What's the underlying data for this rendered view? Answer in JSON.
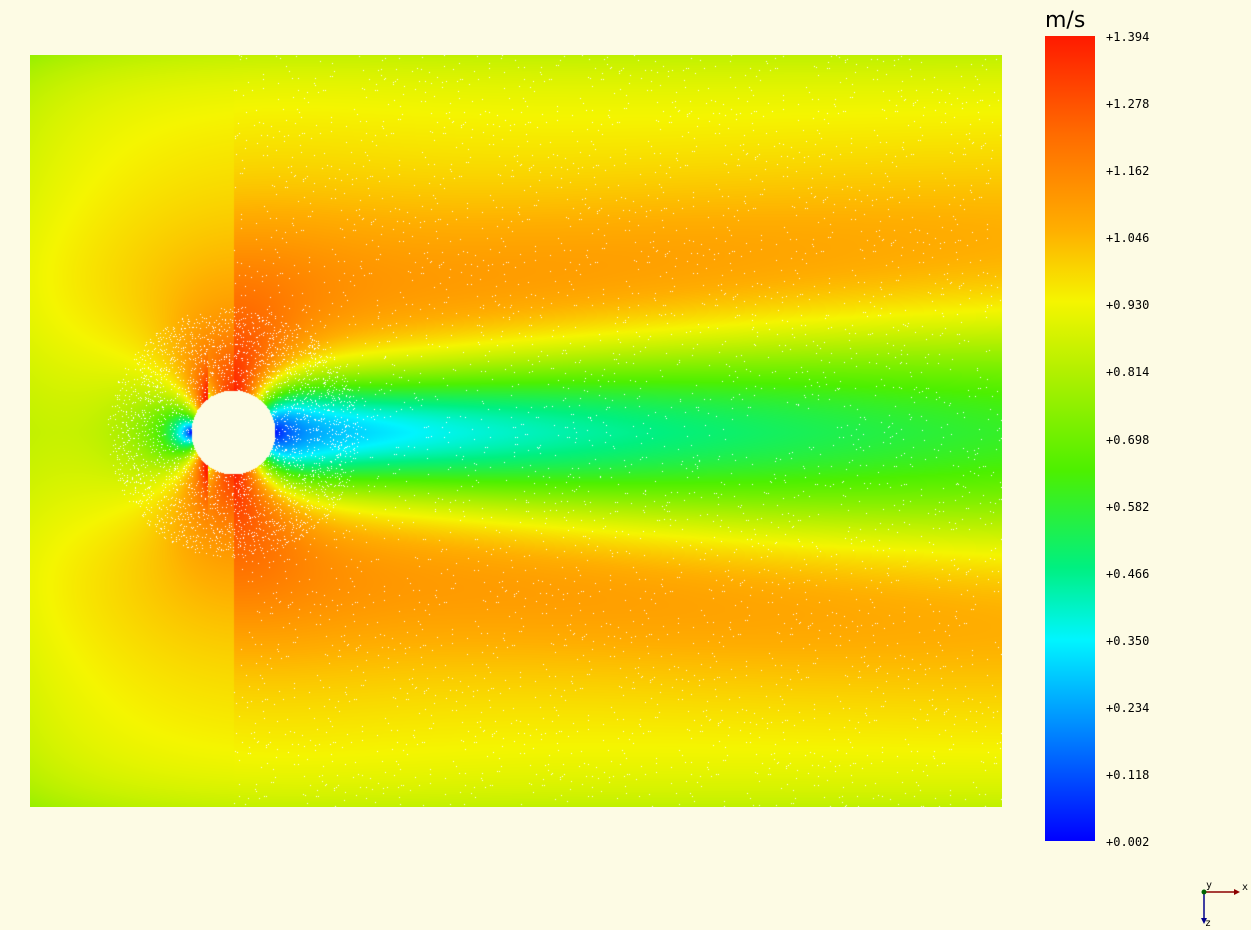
{
  "legend": {
    "unit": "m/s",
    "ticks": [
      "+1.394",
      "+1.278",
      "+1.162",
      "+1.046",
      "+0.930",
      "+0.814",
      "+0.698",
      "+0.582",
      "+0.466",
      "+0.350",
      "+0.234",
      "+0.118",
      "+0.002"
    ],
    "range": [
      0.002,
      1.394
    ],
    "colors": [
      "#0000ff",
      "#00ffff",
      "#00ff00",
      "#ffff00",
      "#ff0000"
    ]
  },
  "axes": {
    "x_label": "x",
    "y_label": "y",
    "z_label": "z"
  },
  "colors": {
    "background": "#fdfbe4",
    "obstacle": "#fdfbe4",
    "x_axis": "#8b0000",
    "y_axis": "#006400",
    "z_axis": "#00008b"
  }
}
